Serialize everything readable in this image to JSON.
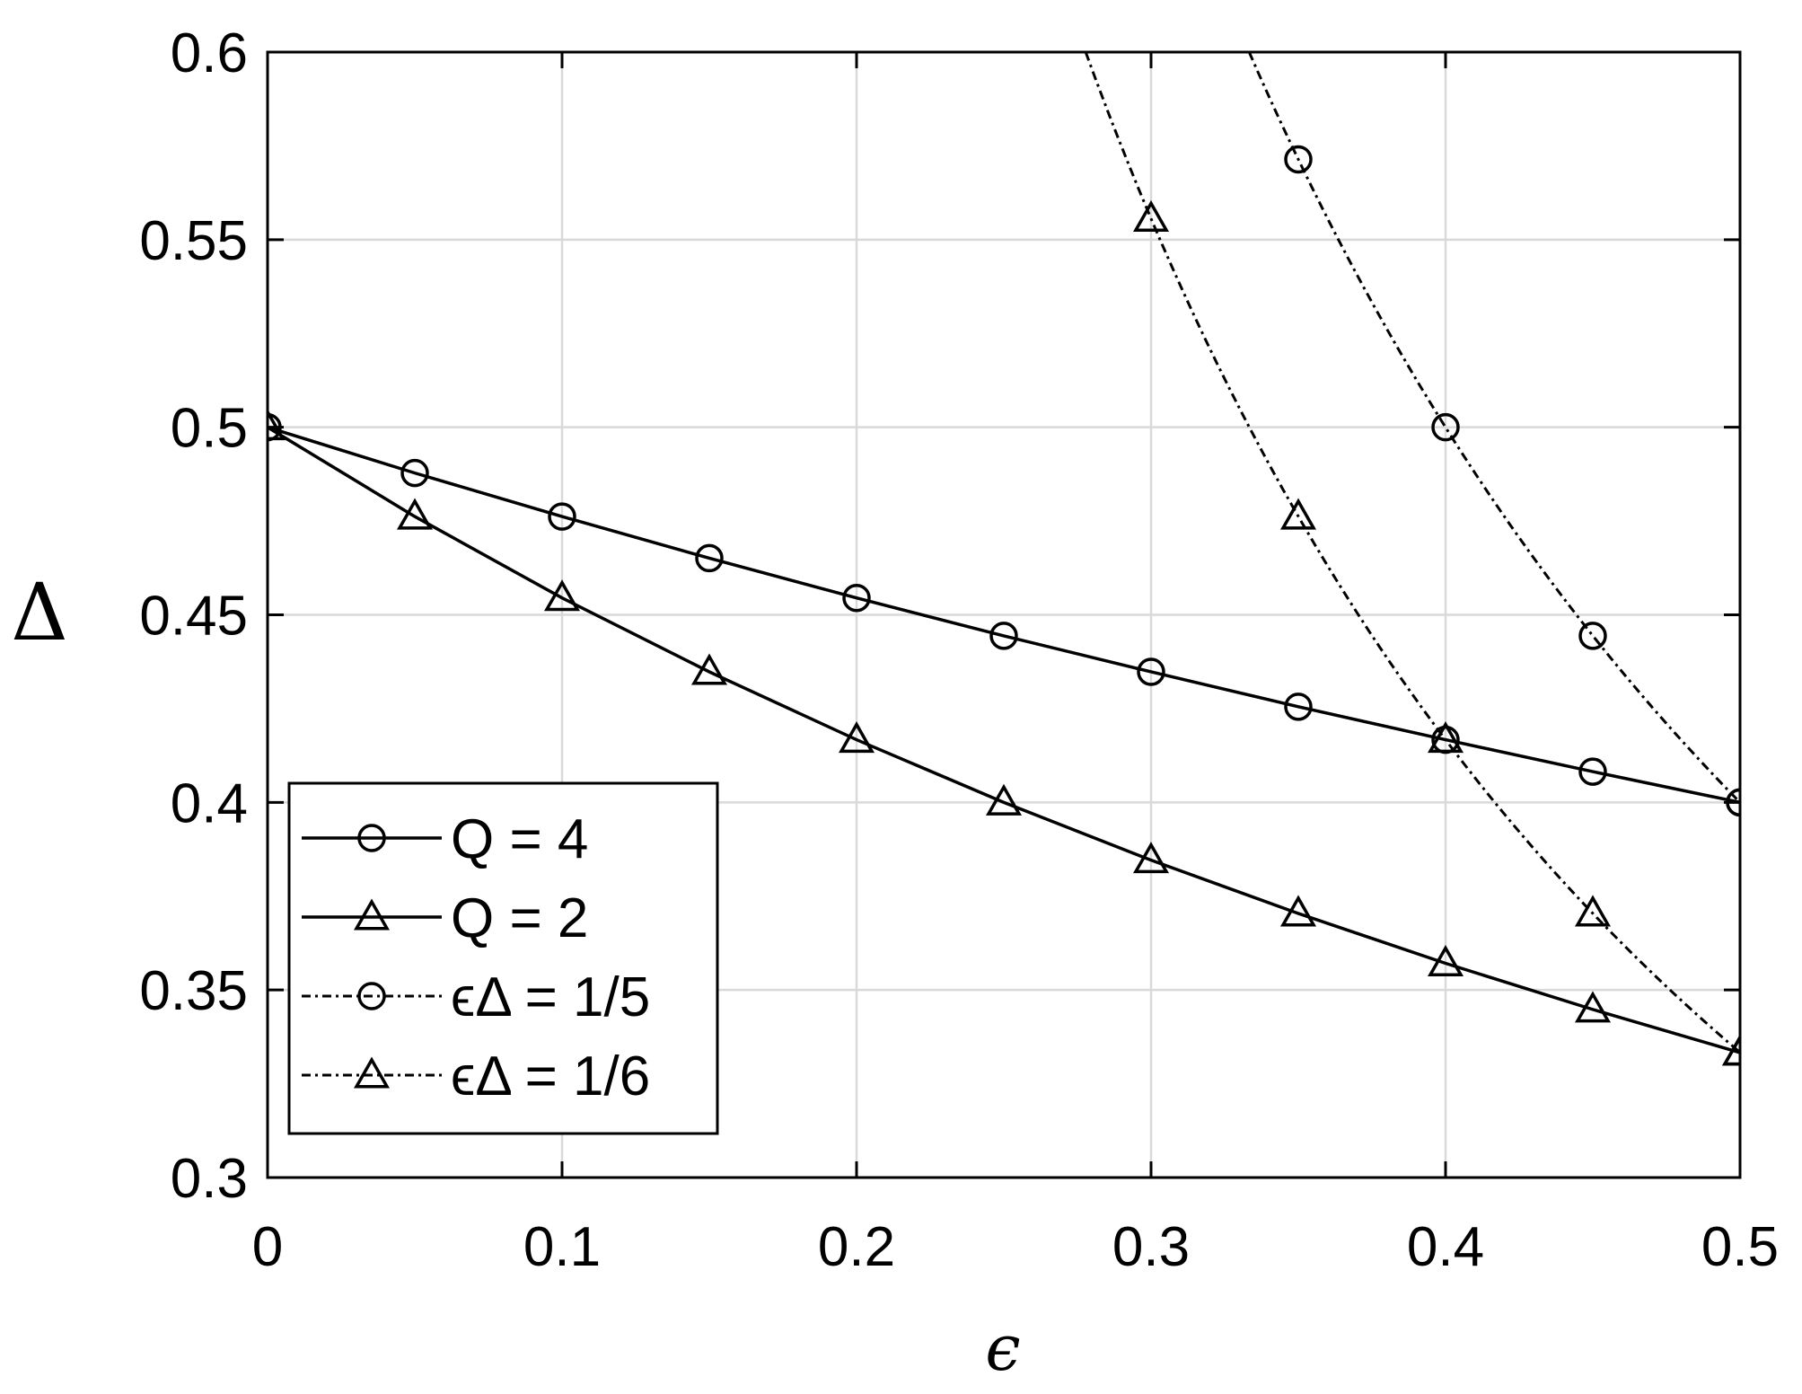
{
  "chart_data": {
    "type": "line",
    "xlabel": "ϵ",
    "ylabel": "Δ",
    "xlim": [
      0,
      0.5
    ],
    "ylim": [
      0.3,
      0.6
    ],
    "grid": true,
    "legend_position": "bottom-left",
    "x_ticks": [
      "0",
      "0.1",
      "0.2",
      "0.3",
      "0.4",
      "0.5"
    ],
    "y_ticks": [
      "0.3",
      "0.35",
      "0.4",
      "0.45",
      "0.5",
      "0.55",
      "0.6"
    ],
    "series": [
      {
        "name": "Q = 4",
        "style": "solid",
        "marker": "circle",
        "x": [
          0,
          0.05,
          0.1,
          0.15,
          0.2,
          0.25,
          0.3,
          0.35,
          0.4,
          0.45,
          0.5
        ],
        "y": [
          0.5,
          0.4878,
          0.4762,
          0.4651,
          0.4545,
          0.4444,
          0.4348,
          0.4255,
          0.4167,
          0.4082,
          0.4
        ]
      },
      {
        "name": "Q = 2",
        "style": "solid",
        "marker": "triangle",
        "x": [
          0,
          0.05,
          0.1,
          0.15,
          0.2,
          0.25,
          0.3,
          0.35,
          0.4,
          0.45,
          0.5
        ],
        "y": [
          0.5,
          0.4762,
          0.4545,
          0.4348,
          0.4167,
          0.4,
          0.3846,
          0.3704,
          0.3571,
          0.3448,
          0.3333
        ]
      },
      {
        "name": "ϵΔ = 1/5",
        "style": "dashdot",
        "marker": "circle",
        "x": [
          0.35,
          0.4,
          0.45,
          0.5
        ],
        "y": [
          0.5714,
          0.5,
          0.4444,
          0.4
        ],
        "curve_from": 0.3333
      },
      {
        "name": "ϵΔ = 1/6",
        "style": "dashdot",
        "marker": "triangle",
        "x": [
          0.3,
          0.35,
          0.4,
          0.45,
          0.5
        ],
        "y": [
          0.5556,
          0.4762,
          0.4167,
          0.3704,
          0.3333
        ],
        "curve_from": 0.2778
      }
    ]
  }
}
